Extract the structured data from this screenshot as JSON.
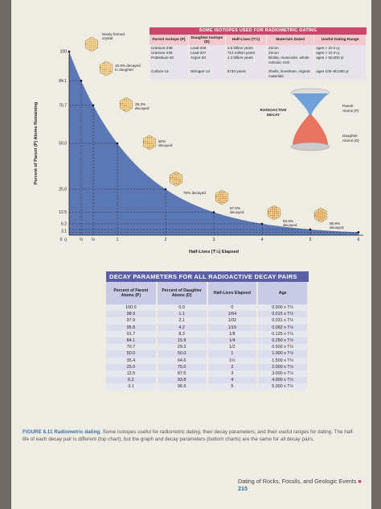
{
  "isotope_table": {
    "title": "SOME ISOTOPES USED FOR RADIOMETRIC DATING",
    "headers": [
      "Parent Isotope (P)",
      "Daughter Isotope (D)",
      "Half-Lives (T½)",
      "Materials Dated",
      "Useful Dating Range"
    ],
    "rows": [
      {
        "parent": [
          "Uranium-238",
          "Uranium-235",
          "Potassium-40"
        ],
        "daughter": [
          "Lead-206",
          "Lead-207",
          "Argon-40"
        ],
        "half_life": [
          "4.5 billion years",
          "713 million years",
          "1.3 billion years"
        ],
        "materials": [
          "Zircon",
          "Zircon",
          "Biotite, muscovite, whole volcanic rock"
        ],
        "range": [
          "ages > 10 m.y.",
          "ages > 10 m.y.",
          "ages > 50,000 yr"
        ]
      },
      {
        "parent": [
          "Carbon-14"
        ],
        "daughter": [
          "Nitrogen-14"
        ],
        "half_life": [
          "5730 years"
        ],
        "materials": [
          "Shells, limestone, organic materials"
        ],
        "range": [
          "ages 100–60,000 yr"
        ]
      }
    ]
  },
  "decay_chart": {
    "ylabel": "Percent of Parent (P) Atoms Remaining",
    "xlabel": "Half-Lives (T½) Elapsed",
    "y_ticks": [
      "100",
      "84.1",
      "70.7",
      "50.0",
      "25.0",
      "12.5",
      "6.2",
      "3.1",
      "0"
    ],
    "x_ticks": [
      "0",
      "¼",
      "½",
      "1",
      "2",
      "3",
      "4",
      "5",
      "6"
    ],
    "annotations": [
      "Newly formed crystal",
      "15.9% decayed to daughter",
      "29.3% decayed",
      "50% decayed",
      "75% decayed",
      "87.5% decayed",
      "93.8% decayed",
      "96.9% decayed"
    ],
    "hourglass_label": "RADIOACTIVE DECAY",
    "parent_label": "Parent Atoms (P)",
    "daughter_label": "Daughter Atoms (D)"
  },
  "chart_data": {
    "type": "area",
    "x": [
      0,
      0.25,
      0.5,
      1,
      2,
      3,
      4,
      5,
      6
    ],
    "y": [
      100,
      84.1,
      70.7,
      50,
      25,
      12.5,
      6.2,
      3.1,
      1.6
    ],
    "xlim": [
      0,
      6
    ],
    "ylim": [
      0,
      100
    ],
    "grid": false
  },
  "decay_table": {
    "title": "DECAY PARAMETERS FOR ALL RADIOACTIVE DECAY PAIRS",
    "headers": [
      "Percent of Parent Atoms (P)",
      "Percent of Daughter Atoms (D)",
      "Half-Lives Elapsed",
      "Age"
    ],
    "rows": [
      [
        "100.0",
        "0.0",
        "0",
        "0.000 x T½"
      ],
      [
        "98.9",
        "1.1",
        "1/64",
        "0.015 x T½"
      ],
      [
        "97.9",
        "2.1",
        "1/32",
        "0.031 x T½"
      ],
      [
        "95.8",
        "4.2",
        "1/16",
        "0.062 x T½"
      ],
      [
        "91.7",
        "8.3",
        "1/8",
        "0.125 x T½"
      ],
      [
        "84.1",
        "15.9",
        "1/4",
        "0.250 x T½"
      ],
      [
        "70.7",
        "29.3",
        "1/2",
        "0.500 x T½"
      ],
      [
        "50.0",
        "50.0",
        "1",
        "1.000 x T½"
      ],
      [
        "35.4",
        "64.6",
        "1½",
        "1.500 x T½"
      ],
      [
        "25.0",
        "75.0",
        "2",
        "2.000 x T½"
      ],
      [
        "12.5",
        "87.5",
        "3",
        "3.000 x T½"
      ],
      [
        "6.2",
        "93.8",
        "4",
        "4.000 x T½"
      ],
      [
        "3.1",
        "96.9",
        "5",
        "5.000 x T½"
      ]
    ]
  },
  "caption": {
    "label": "FIGURE 8.11",
    "title": "Radiometric dating.",
    "text": "Some isotopes useful for radiometric dating, their decay parameters, and their useful ranges for dating. The half-life of each decay pair is different (top chart), but the graph and decay parameters (bottom charts) are the same for all decay pairs."
  },
  "footer": {
    "text": "Dating of Rocks, Fossils, and Geologic Events",
    "page": "215"
  },
  "colors": {
    "curve_fill": "#5b78b4",
    "pink": "#c9476a",
    "decay_header": "#5a5fa6",
    "crystal": "#d4a04a"
  }
}
